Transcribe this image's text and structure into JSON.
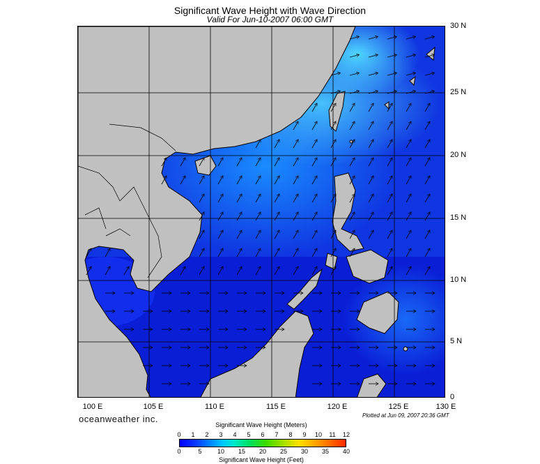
{
  "header": {
    "title": "Significant Wave Height with Wave Direction",
    "subtitle": "Valid For Jun-10-2007 06:00 GMT"
  },
  "map": {
    "lat_labels": [
      "30 N",
      "25 N",
      "20 N",
      "15 N",
      "10 N",
      "5 N",
      "0"
    ],
    "lon_labels": [
      "100 E",
      "105 E",
      "110 E",
      "115 E",
      "120 E",
      "125 E",
      "130 E"
    ],
    "land_color": "#c0c0c0",
    "ocean_color_low": "#0a1ed6",
    "ocean_color_high": "#4fd6ff",
    "wave_direction": "south-west monsoon, arrows pointing north-east"
  },
  "footer": {
    "brand": "oceanweather inc.",
    "plotted": "Plotted at Jun 09, 2007 20:36 GMT"
  },
  "legend": {
    "title_meters": "Significant Wave Height (Meters)",
    "title_feet": "Significant Wave Height (Feet)",
    "meters_ticks": [
      "0",
      "1",
      "2",
      "3",
      "4",
      "5",
      "6",
      "7",
      "8",
      "9",
      "10",
      "11",
      "12"
    ],
    "feet_ticks": [
      "0",
      "5",
      "10",
      "15",
      "20",
      "25",
      "30",
      "35",
      "40"
    ]
  }
}
